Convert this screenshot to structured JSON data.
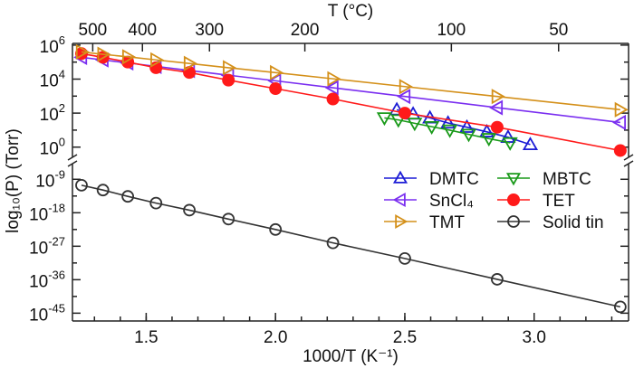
{
  "chart_data": {
    "type": "scatter",
    "xlabel": "1000/T (K⁻¹)",
    "ylabel": "log₁₀(P) (Torr)",
    "top_xlabel": "T (°C)",
    "xlim": [
      1.215,
      3.365
    ],
    "y_scale": "log",
    "y_axis_broken": true,
    "ylim_upper_panel_exponent": [
      -0.6,
      6.1
    ],
    "ylim_lower_panel_exponent": [
      -47.1,
      -4.8
    ],
    "x_ticks": [
      "1.5",
      "2.0",
      "2.5",
      "3.0"
    ],
    "x_tick_values": [
      1.5,
      2.0,
      2.5,
      3.0
    ],
    "top_ticks": [
      "500",
      "400",
      "300",
      "200",
      "100",
      "50"
    ],
    "top_tick_values_celsius": [
      500,
      400,
      300,
      200,
      100,
      50
    ],
    "y_ticks_upper_exponents": [
      "6",
      "4",
      "2",
      "0"
    ],
    "y_ticks_lower_exponents": [
      "-9",
      "-18",
      "-27",
      "-36",
      "-45"
    ],
    "grid": false,
    "legend_placement": "center-right",
    "series": [
      {
        "name": "DMTC",
        "marker": "triangle-up",
        "color": "#1c1cd6",
        "x": [
          2.469,
          2.532,
          2.597,
          2.667,
          2.74,
          2.817,
          2.899,
          2.985
        ],
        "log10_y": [
          2.2,
          1.95,
          1.72,
          1.42,
          1.17,
          0.9,
          0.58,
          0.15
        ]
      },
      {
        "name": "MBTC",
        "marker": "triangle-down",
        "color": "#1a9a1a",
        "x": [
          2.421,
          2.475,
          2.538,
          2.604,
          2.674,
          2.747,
          2.825,
          2.907
        ],
        "log10_y": [
          1.72,
          1.6,
          1.4,
          1.2,
          1.0,
          0.75,
          0.5,
          0.25
        ]
      },
      {
        "name": "SnCl₄",
        "marker": "triangle-left",
        "color": "#7a2ef0",
        "x": [
          1.25,
          1.333,
          1.429,
          1.538,
          1.667,
          1.818,
          2.0,
          2.222,
          2.5,
          2.857,
          3.333
        ],
        "log10_y": [
          5.28,
          5.13,
          4.95,
          4.75,
          4.51,
          4.23,
          3.9,
          3.49,
          2.98,
          2.32,
          1.45
        ]
      },
      {
        "name": "TET",
        "marker": "filled-circle",
        "color": "#ff1a1a",
        "x": [
          1.25,
          1.333,
          1.429,
          1.538,
          1.667,
          1.818,
          2.0,
          2.222,
          2.5,
          2.857,
          3.333
        ],
        "log10_y": [
          5.5,
          5.28,
          5.0,
          4.67,
          4.39,
          3.94,
          3.44,
          2.83,
          2.0,
          1.17,
          -0.2
        ]
      },
      {
        "name": "TMT",
        "marker": "triangle-right",
        "color": "#d4901a",
        "x": [
          1.25,
          1.333,
          1.429,
          1.538,
          1.667,
          1.818,
          2.0,
          2.222,
          2.5,
          2.857,
          3.333
        ],
        "log10_y": [
          5.6,
          5.46,
          5.31,
          5.13,
          4.92,
          4.67,
          4.38,
          4.02,
          3.56,
          2.98,
          2.2
        ]
      },
      {
        "name": "Solid tin",
        "marker": "open-circle",
        "color": "#333333",
        "x": [
          1.25,
          1.333,
          1.429,
          1.538,
          1.667,
          1.818,
          2.0,
          2.222,
          2.5,
          2.857,
          3.333
        ],
        "log10_y": [
          -10.6,
          -11.9,
          -13.6,
          -15.4,
          -17.3,
          -19.7,
          -22.5,
          -26.1,
          -30.3,
          -35.9,
          -43.3
        ]
      }
    ]
  }
}
